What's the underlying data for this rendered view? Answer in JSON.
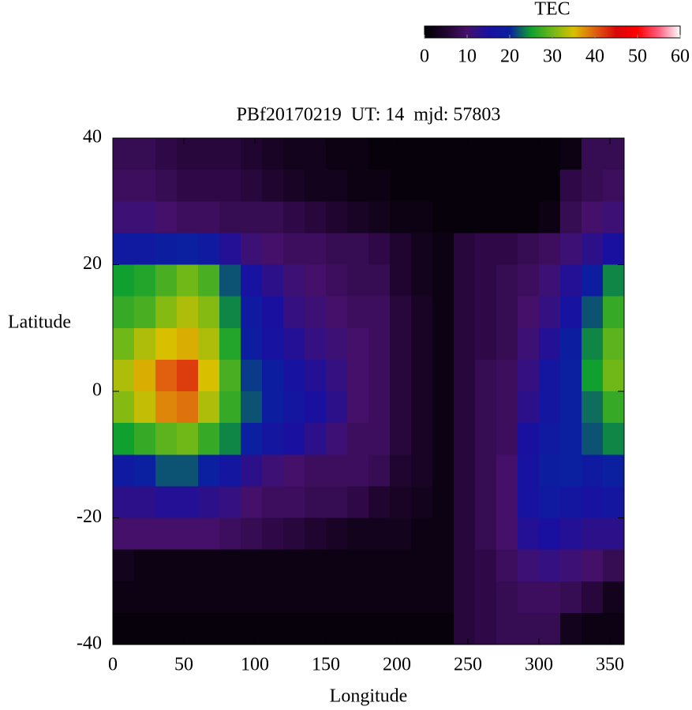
{
  "chart_data": {
    "type": "heatmap",
    "title": "PBf20170219  UT: 14  mjd: 57803",
    "xlabel": "Longitude",
    "ylabel": "Latitude",
    "colorbar_label": "TEC",
    "xlim": [
      0,
      360
    ],
    "xticks": [
      0,
      50,
      100,
      150,
      200,
      250,
      300,
      350
    ],
    "ylim": [
      -40,
      40
    ],
    "yticks": [
      -40,
      -20,
      0,
      20,
      40
    ],
    "zlim": [
      0,
      60
    ],
    "zticks": [
      0,
      10,
      20,
      30,
      40,
      50,
      60
    ],
    "colors": [
      "#000000",
      "#200530",
      "#45106a",
      "#1a10a0",
      "#0a20a0",
      "#10a030",
      "#70b818",
      "#d8c000",
      "#e06010",
      "#d80808",
      "#ff0000",
      "#ff6080",
      "#ffffff"
    ],
    "xbins": [
      0,
      15,
      30,
      45,
      60,
      75,
      90,
      105,
      120,
      135,
      150,
      165,
      180,
      195,
      210,
      225,
      240,
      255,
      270,
      285,
      300,
      315,
      330,
      345,
      360
    ],
    "ybins": [
      40,
      35,
      30,
      25,
      20,
      15,
      10,
      5,
      0,
      -5,
      -10,
      -15,
      -20,
      -25,
      -30,
      -35,
      -40
    ],
    "values": [
      [
        8,
        8,
        7,
        6,
        6,
        6,
        5,
        4,
        3,
        3,
        2,
        2,
        1,
        1,
        1,
        1,
        1,
        1,
        1,
        1,
        1,
        2,
        8,
        8
      ],
      [
        9,
        9,
        8,
        7,
        7,
        7,
        6,
        5,
        4,
        3,
        3,
        2,
        2,
        1,
        1,
        1,
        1,
        1,
        1,
        1,
        1,
        7,
        8,
        9
      ],
      [
        11,
        11,
        10,
        9,
        9,
        8,
        8,
        8,
        7,
        6,
        5,
        4,
        3,
        2,
        2,
        1,
        1,
        1,
        1,
        1,
        2,
        8,
        10,
        11
      ],
      [
        18,
        18,
        19,
        20,
        18,
        14,
        11,
        10,
        9,
        9,
        8,
        8,
        7,
        5,
        3,
        2,
        6,
        7,
        7,
        8,
        9,
        11,
        13,
        15
      ],
      [
        25,
        26,
        28,
        30,
        28,
        22,
        16,
        13,
        11,
        10,
        9,
        8,
        8,
        5,
        3,
        2,
        6,
        7,
        8,
        9,
        11,
        14,
        19,
        24
      ],
      [
        27,
        28,
        31,
        33,
        31,
        24,
        18,
        15,
        12,
        11,
        10,
        9,
        9,
        6,
        4,
        2,
        6,
        7,
        8,
        10,
        12,
        16,
        22,
        27
      ],
      [
        30,
        33,
        35,
        36,
        33,
        26,
        19,
        16,
        14,
        12,
        11,
        10,
        9,
        6,
        4,
        2,
        6,
        7,
        8,
        11,
        14,
        19,
        24,
        29
      ],
      [
        33,
        36,
        40,
        42,
        35,
        28,
        21,
        19,
        16,
        14,
        12,
        10,
        9,
        6,
        4,
        2,
        6,
        8,
        9,
        12,
        17,
        20,
        25,
        30
      ],
      [
        31,
        34,
        38,
        39,
        33,
        27,
        22,
        19,
        17,
        15,
        13,
        10,
        9,
        6,
        4,
        2,
        6,
        8,
        9,
        13,
        17,
        20,
        23,
        27
      ],
      [
        25,
        27,
        29,
        30,
        27,
        24,
        20,
        17,
        15,
        13,
        11,
        9,
        9,
        6,
        4,
        2,
        6,
        8,
        9,
        15,
        18,
        20,
        22,
        24
      ],
      [
        18,
        20,
        22,
        22,
        20,
        17,
        13,
        11,
        10,
        9,
        9,
        9,
        8,
        5,
        4,
        2,
        6,
        8,
        10,
        16,
        19,
        20,
        18,
        20
      ],
      [
        13,
        13,
        14,
        14,
        13,
        12,
        10,
        9,
        9,
        8,
        8,
        7,
        5,
        4,
        3,
        2,
        6,
        8,
        10,
        16,
        18,
        17,
        16,
        17
      ],
      [
        10,
        10,
        10,
        10,
        10,
        9,
        8,
        7,
        6,
        5,
        4,
        3,
        3,
        3,
        2,
        2,
        6,
        8,
        10,
        14,
        15,
        14,
        13,
        13
      ],
      [
        3,
        2,
        2,
        2,
        2,
        2,
        2,
        2,
        2,
        2,
        2,
        2,
        2,
        2,
        2,
        2,
        6,
        7,
        9,
        11,
        12,
        11,
        10,
        8
      ],
      [
        2,
        2,
        2,
        2,
        2,
        2,
        2,
        2,
        2,
        2,
        2,
        2,
        2,
        2,
        2,
        2,
        6,
        7,
        8,
        9,
        9,
        8,
        6,
        3
      ],
      [
        1,
        1,
        1,
        1,
        1,
        1,
        1,
        1,
        1,
        1,
        1,
        1,
        1,
        1,
        1,
        1,
        6,
        7,
        8,
        8,
        8,
        3,
        2,
        2
      ]
    ]
  }
}
